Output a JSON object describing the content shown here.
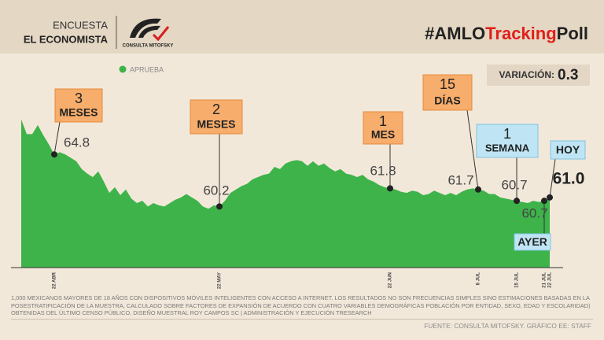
{
  "header": {
    "brand_lines": [
      "ENCUESTA",
      "EL ECONOMISTA"
    ],
    "logo_text": "CONSULTA MITOFSKY",
    "hashtag": [
      {
        "text": "#AMLO",
        "color": "#222222"
      },
      {
        "text": "Tracking",
        "color": "#e0201b"
      },
      {
        "text": "Poll",
        "color": "#222222"
      }
    ]
  },
  "variation": {
    "label": "VARIACIÓN:",
    "value": 0.3
  },
  "chart_data": {
    "type": "area",
    "categories": [
      null,
      null,
      null,
      null,
      null,
      null,
      "22 ABR",
      null,
      null,
      null,
      null,
      null,
      null,
      null,
      null,
      null,
      null,
      null,
      null,
      null,
      null,
      null,
      null,
      null,
      null,
      null,
      null,
      null,
      null,
      null,
      null,
      null,
      null,
      null,
      null,
      null,
      "22 MAY",
      null,
      null,
      null,
      null,
      null,
      null,
      null,
      null,
      null,
      null,
      null,
      null,
      null,
      null,
      null,
      null,
      null,
      null,
      null,
      null,
      null,
      null,
      null,
      null,
      null,
      null,
      null,
      null,
      null,
      null,
      "22 JUN",
      null,
      null,
      null,
      null,
      null,
      null,
      null,
      null,
      null,
      null,
      null,
      null,
      null,
      null,
      null,
      "8 JUL",
      null,
      null,
      null,
      null,
      null,
      null,
      "15 JUL",
      null,
      null,
      null,
      null,
      "21 JUL",
      "22 JUL"
    ],
    "series": [
      {
        "name": "APRUEBA",
        "color": "#3db34a",
        "values": [
          67.9,
          66.6,
          66.6,
          67.4,
          66.5,
          65.7,
          64.8,
          65.0,
          64.8,
          64.5,
          64.2,
          63.5,
          63.1,
          62.8,
          63.3,
          62.4,
          61.4,
          61.9,
          61.2,
          61.7,
          60.9,
          60.5,
          60.7,
          60.2,
          60.5,
          60.3,
          60.2,
          60.5,
          60.8,
          61.0,
          61.3,
          61.0,
          60.7,
          60.2,
          60.0,
          60.3,
          60.2,
          60.7,
          61.4,
          61.7,
          62.0,
          62.2,
          62.6,
          62.8,
          63.0,
          63.1,
          63.7,
          63.5,
          64.0,
          64.2,
          64.3,
          64.2,
          63.8,
          64.2,
          63.8,
          64.0,
          63.6,
          63.3,
          63.5,
          63.1,
          63.0,
          62.8,
          63.0,
          62.6,
          62.4,
          62.1,
          61.9,
          61.8,
          61.7,
          61.5,
          61.4,
          61.6,
          61.5,
          61.2,
          61.3,
          61.6,
          61.4,
          61.2,
          61.4,
          61.2,
          61.5,
          61.7,
          61.8,
          61.7,
          61.6,
          61.3,
          61.3,
          61.0,
          60.9,
          60.8,
          60.7,
          60.6,
          60.5,
          60.7,
          60.6,
          60.7,
          61.0
        ],
        "value_labels": [
          null,
          null,
          null,
          null,
          null,
          null,
          null,
          null,
          null,
          null,
          null,
          null,
          null,
          null,
          null,
          null,
          null,
          null,
          null,
          null,
          null,
          null,
          null,
          null,
          null,
          null,
          null,
          null,
          null,
          null,
          null,
          null,
          null,
          null,
          null,
          null,
          null,
          null,
          null,
          null,
          null,
          null,
          null,
          null,
          null,
          null,
          null,
          null,
          null,
          null,
          null,
          null,
          null,
          null,
          null,
          null,
          null,
          null,
          null,
          null,
          null,
          null,
          null,
          null,
          null,
          null,
          null,
          null,
          null,
          null,
          null,
          null,
          null,
          null,
          null,
          null,
          null,
          null,
          null,
          null,
          null,
          null,
          null,
          null,
          null,
          null,
          null,
          null,
          null,
          null,
          null,
          null,
          null,
          null,
          null,
          null,
          "61.0"
        ]
      }
    ],
    "ylim": [
      54.8,
      68.5
    ],
    "annotations": [
      {
        "lines": [
          "3",
          "MESES"
        ],
        "color": "#f7ad6b"
      },
      {
        "lines": [
          "2",
          "MESES"
        ],
        "color": "#f7ad6b"
      },
      {
        "lines": [
          "1",
          "MES"
        ],
        "color": "#f7ad6b"
      },
      {
        "lines": [
          "15",
          "DÍAS"
        ],
        "color": "#f7ad6b"
      },
      {
        "lines": [
          "1",
          "SEMANA"
        ],
        "color": "#bfe5f4"
      },
      {
        "lines": [
          "AYER"
        ],
        "color": "#bfe5f4"
      },
      {
        "lines": [
          "HOY"
        ],
        "color": "#bfe5f4"
      }
    ]
  },
  "footer": {
    "note": "1,000 MEXICANOS MAYORES DE 18 AÑOS CON DISPOSITIVOS MÓVILES INTELIGENTES CON ACCESO A INTERNET. LOS RESULTADOS NO SON FRECUENCIAS SIMPLES SINO ESTIMACIONES BASADAS EN LA POSESTRATIFICACIÓN DE LA MUESTRA, CALCULADO SOBRE FACTORES DE EXPANSIÓN DE ACUERDO CON CUATRO VARIABLES DEMOGRÁFICAS POBLACIÓN POR ENTIDAD, SEXO, EDAD Y ESCOLARIDAD) OBTENIDAS DEL ÚLTIMO CENSO PÚBLICO. DISEÑO MUESTRAL ROY CAMPOS SC | ADMINISTRACIÓN Y EJECUCIÓN TRESEARCH",
    "source": "FUENTE: CONSULTA MITOFSKY. GRÁFICO EE: STAFF"
  }
}
